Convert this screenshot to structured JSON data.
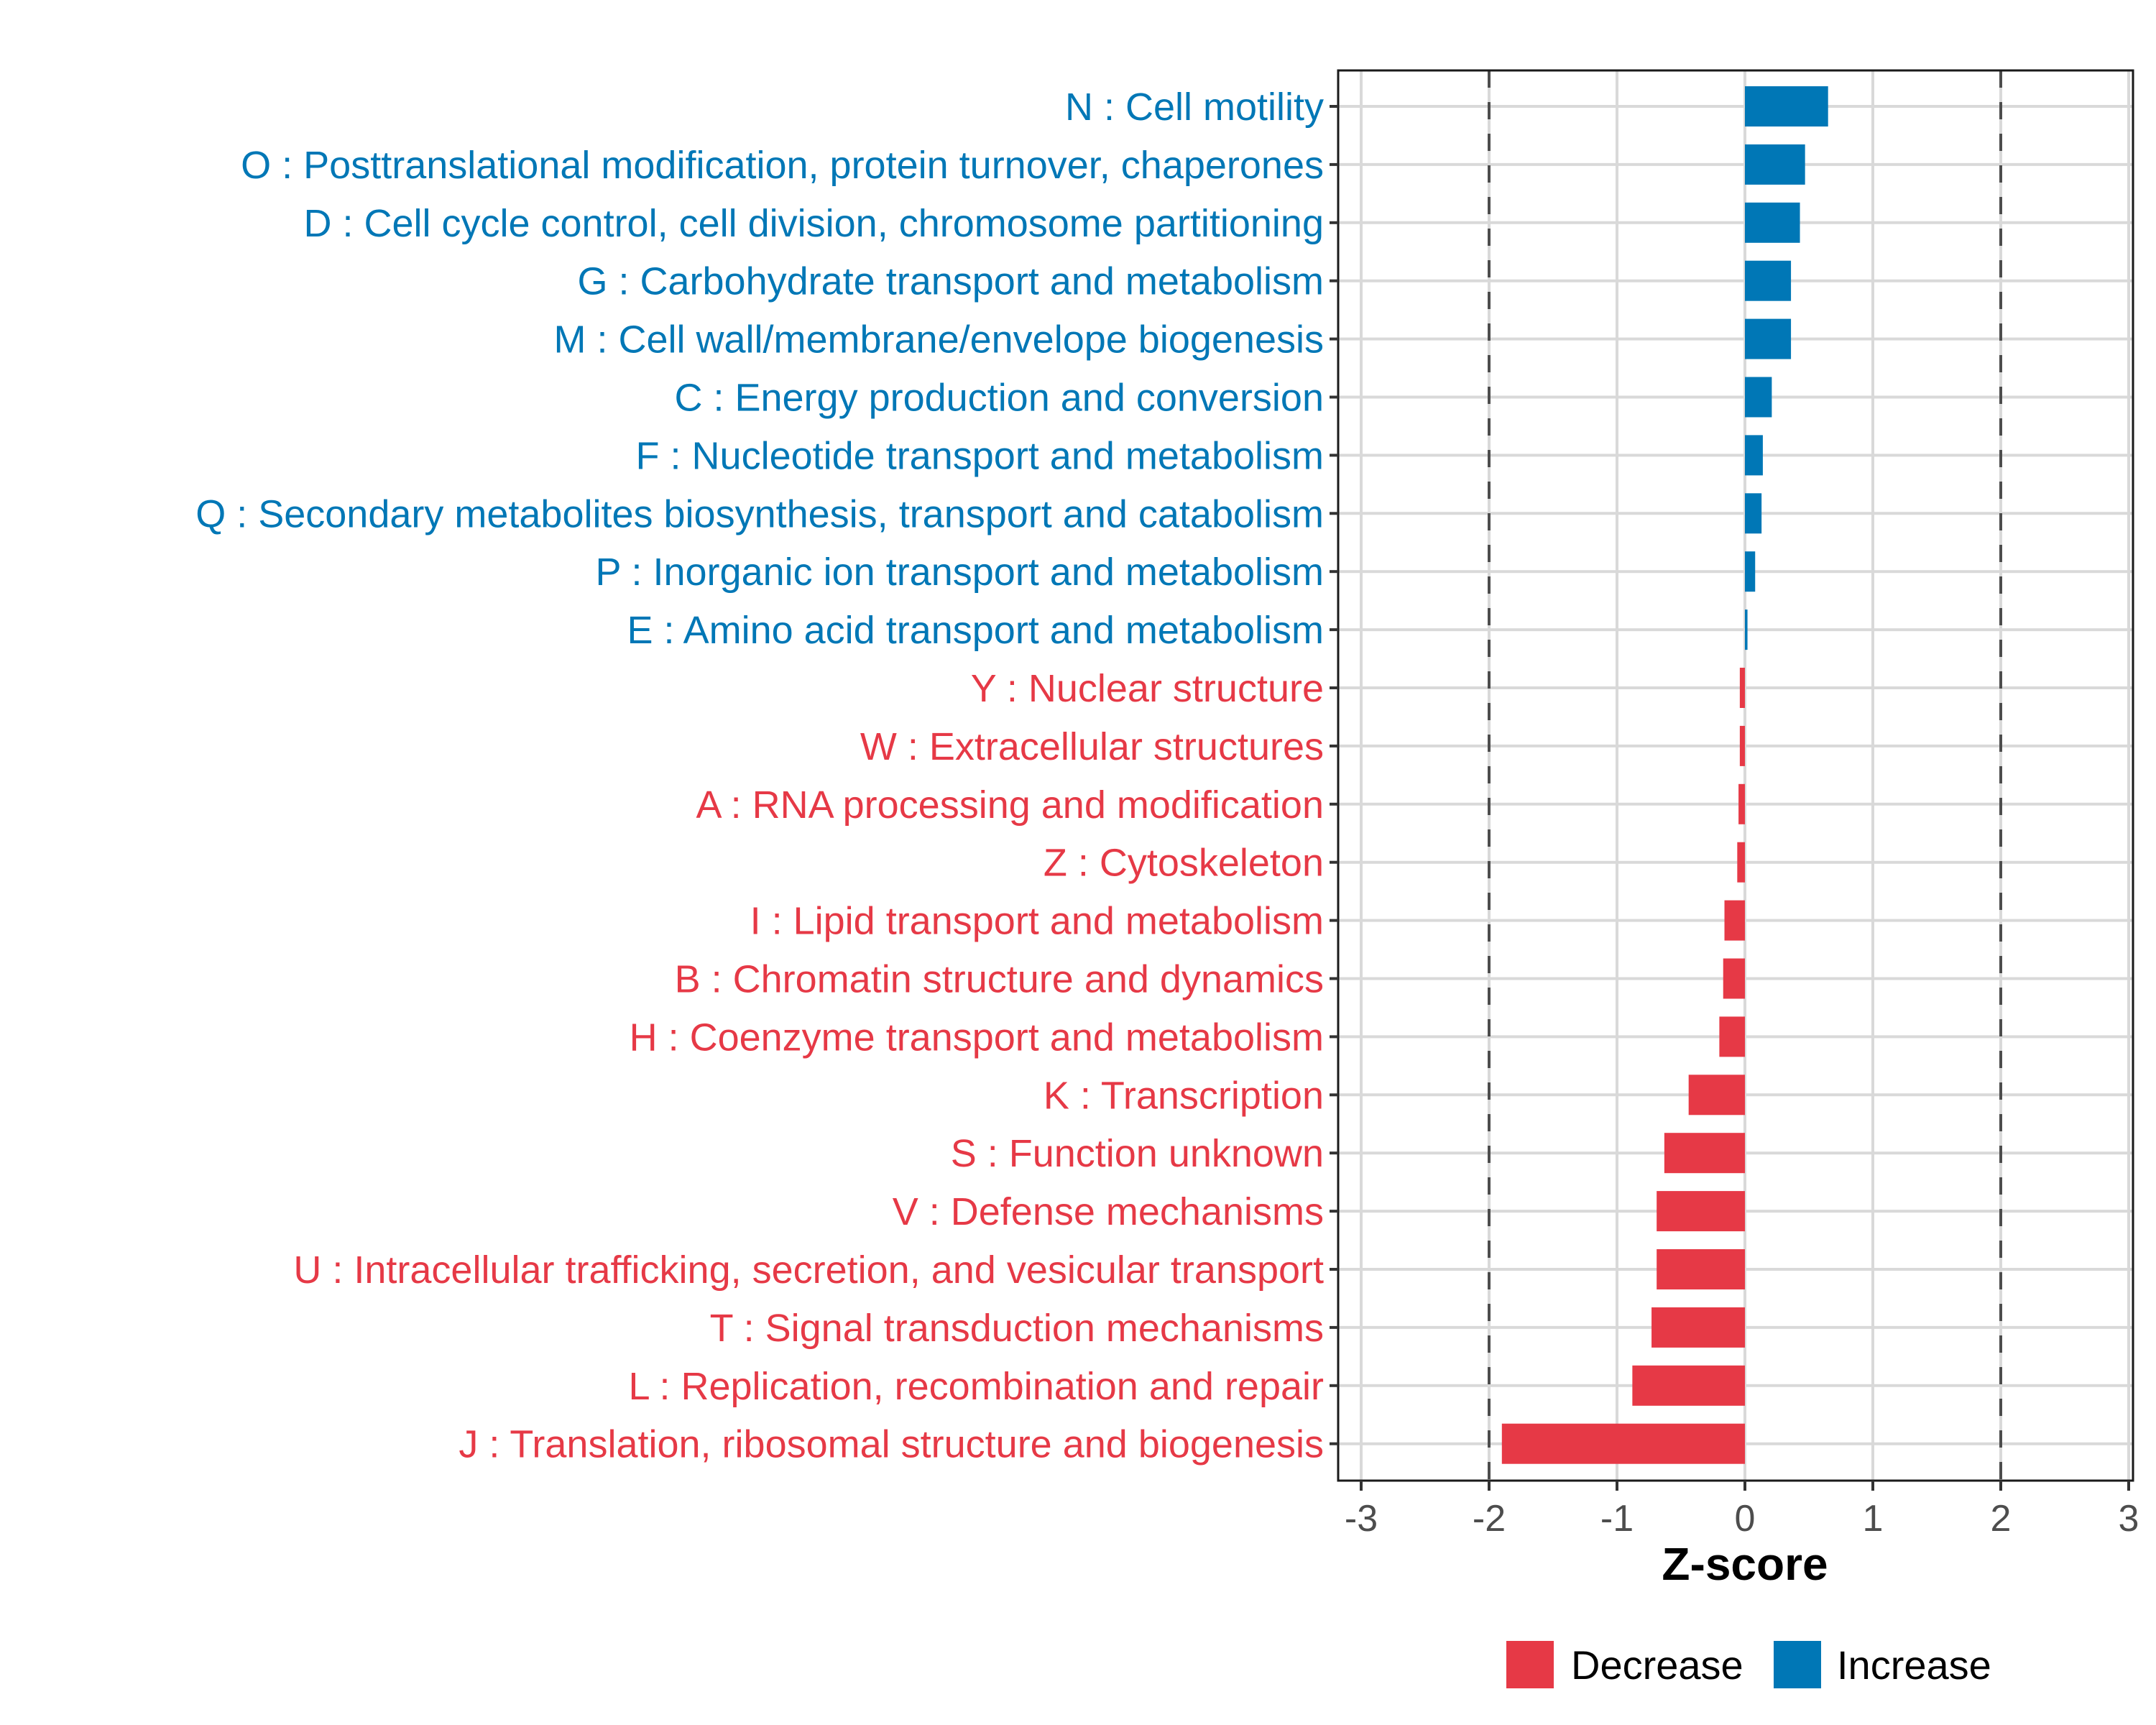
{
  "chart_data": {
    "type": "bar",
    "orientation": "horizontal",
    "title": "",
    "xlabel": "Z-score",
    "ylabel": "",
    "xlim": [
      -3.2,
      3.2
    ],
    "xticks": [
      -3,
      -2,
      -1,
      0,
      1,
      2,
      3
    ],
    "xtick_labels": [
      "-3",
      "-2",
      "-1",
      "0",
      "1",
      "2",
      "3"
    ],
    "reference_lines": [
      -2,
      2
    ],
    "grid": true,
    "legend_position": "bottom",
    "legend": [
      {
        "name": "Decrease",
        "color": "#E63946"
      },
      {
        "name": "Increase",
        "color": "#0077B6"
      }
    ],
    "categories": [
      {
        "label": "N : Cell motility",
        "value": 0.65,
        "group": "Increase"
      },
      {
        "label": "O : Posttranslational modification, protein turnover, chaperones",
        "value": 0.47,
        "group": "Increase"
      },
      {
        "label": "D : Cell cycle control, cell division, chromosome partitioning",
        "value": 0.43,
        "group": "Increase"
      },
      {
        "label": "G : Carbohydrate transport and metabolism",
        "value": 0.36,
        "group": "Increase"
      },
      {
        "label": "M : Cell wall/membrane/envelope biogenesis",
        "value": 0.36,
        "group": "Increase"
      },
      {
        "label": "C : Energy production and conversion",
        "value": 0.21,
        "group": "Increase"
      },
      {
        "label": "F : Nucleotide transport and metabolism",
        "value": 0.14,
        "group": "Increase"
      },
      {
        "label": "Q : Secondary metabolites biosynthesis, transport and catabolism",
        "value": 0.13,
        "group": "Increase"
      },
      {
        "label": "P : Inorganic ion transport and metabolism",
        "value": 0.08,
        "group": "Increase"
      },
      {
        "label": "E : Amino acid transport and metabolism",
        "value": 0.02,
        "group": "Increase"
      },
      {
        "label": "Y : Nuclear structure",
        "value": -0.04,
        "group": "Decrease"
      },
      {
        "label": "W : Extracellular structures",
        "value": -0.04,
        "group": "Decrease"
      },
      {
        "label": "A : RNA processing and modification",
        "value": -0.05,
        "group": "Decrease"
      },
      {
        "label": "Z : Cytoskeleton",
        "value": -0.06,
        "group": "Decrease"
      },
      {
        "label": "I : Lipid transport and metabolism",
        "value": -0.16,
        "group": "Decrease"
      },
      {
        "label": "B : Chromatin structure and dynamics",
        "value": -0.17,
        "group": "Decrease"
      },
      {
        "label": "H : Coenzyme transport and metabolism",
        "value": -0.2,
        "group": "Decrease"
      },
      {
        "label": "K : Transcription",
        "value": -0.44,
        "group": "Decrease"
      },
      {
        "label": "S : Function unknown",
        "value": -0.63,
        "group": "Decrease"
      },
      {
        "label": "V : Defense mechanisms",
        "value": -0.69,
        "group": "Decrease"
      },
      {
        "label": "U : Intracellular trafficking, secretion, and vesicular transport",
        "value": -0.69,
        "group": "Decrease"
      },
      {
        "label": "T : Signal transduction mechanisms",
        "value": -0.73,
        "group": "Decrease"
      },
      {
        "label": "L : Replication, recombination and repair",
        "value": -0.88,
        "group": "Decrease"
      },
      {
        "label": "J : Translation, ribosomal structure and biogenesis",
        "value": -1.9,
        "group": "Decrease"
      }
    ]
  }
}
